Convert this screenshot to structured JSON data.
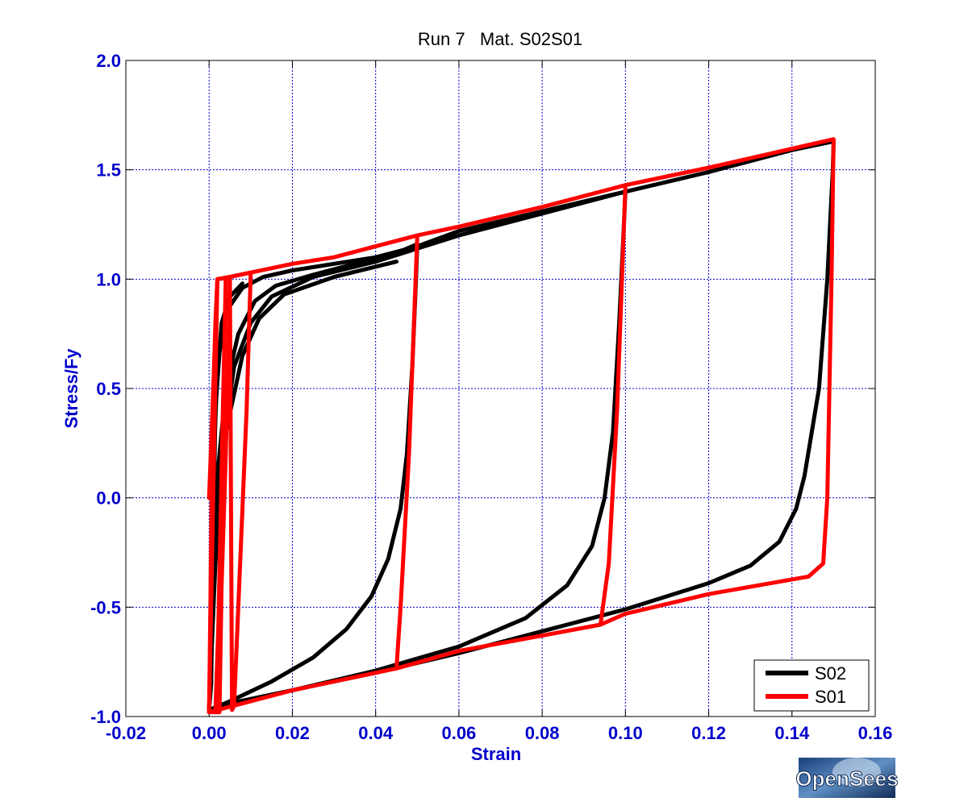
{
  "logo": {
    "text": "OpenSees"
  },
  "chart_data": {
    "type": "line",
    "title": "Run 7   Mat. S02S01",
    "xlabel": "Strain",
    "ylabel": "Stress/Fy",
    "xlim": [
      -0.02,
      0.16
    ],
    "ylim": [
      -1.0,
      2.0
    ],
    "xticks": [
      -0.02,
      0.0,
      0.02,
      0.04,
      0.06,
      0.08,
      0.1,
      0.12,
      0.14,
      0.16
    ],
    "xtick_labels": [
      "-0.02",
      "0.00",
      "0.02",
      "0.04",
      "0.06",
      "0.08",
      "0.10",
      "0.12",
      "0.14",
      "0.16"
    ],
    "yticks": [
      -1.0,
      -0.5,
      0.0,
      0.5,
      1.0,
      1.5,
      2.0
    ],
    "ytick_labels": [
      "-1.0",
      "-0.5",
      "0.0",
      "0.5",
      "1.0",
      "1.5",
      "2.0"
    ],
    "grid": true,
    "legend_position": "bottom-right",
    "series": [
      {
        "name": "S02",
        "color": "#000000",
        "segments": [
          [
            [
              0.0,
              -0.97
            ],
            [
              0.0005,
              -0.6
            ],
            [
              0.001,
              0.1
            ],
            [
              0.002,
              0.6
            ],
            [
              0.004,
              0.85
            ],
            [
              0.008,
              0.96
            ],
            [
              0.013,
              1.01
            ],
            [
              0.02,
              1.04
            ],
            [
              0.03,
              1.07
            ],
            [
              0.04,
              1.1
            ],
            [
              0.05,
              1.15
            ],
            [
              0.06,
              1.22
            ],
            [
              0.08,
              1.31
            ],
            [
              0.1,
              1.4
            ],
            [
              0.12,
              1.49
            ],
            [
              0.14,
              1.59
            ],
            [
              0.15,
              1.63
            ],
            [
              0.1498,
              1.5
            ],
            [
              0.1485,
              1.0
            ],
            [
              0.1465,
              0.5
            ],
            [
              0.143,
              0.1
            ],
            [
              0.141,
              -0.05
            ],
            [
              0.137,
              -0.2
            ],
            [
              0.13,
              -0.31
            ],
            [
              0.12,
              -0.39
            ],
            [
              0.1,
              -0.51
            ],
            [
              0.08,
              -0.61
            ],
            [
              0.06,
              -0.71
            ],
            [
              0.04,
              -0.8
            ],
            [
              0.02,
              -0.88
            ],
            [
              0.005,
              -0.94
            ],
            [
              0.0,
              -0.97
            ]
          ],
          [
            [
              0.0,
              -0.97
            ],
            [
              0.0008,
              -0.5
            ],
            [
              0.002,
              0.1
            ],
            [
              0.004,
              0.5
            ],
            [
              0.007,
              0.75
            ],
            [
              0.011,
              0.9
            ],
            [
              0.016,
              0.97
            ],
            [
              0.025,
              1.02
            ],
            [
              0.035,
              1.07
            ],
            [
              0.045,
              1.12
            ],
            [
              0.05,
              1.16
            ],
            [
              0.0497,
              1.0
            ],
            [
              0.0488,
              0.6
            ],
            [
              0.0475,
              0.2
            ],
            [
              0.046,
              -0.05
            ],
            [
              0.043,
              -0.28
            ],
            [
              0.039,
              -0.45
            ],
            [
              0.033,
              -0.6
            ],
            [
              0.025,
              -0.73
            ],
            [
              0.015,
              -0.84
            ],
            [
              0.005,
              -0.93
            ],
            [
              0.0,
              -0.97
            ]
          ],
          [
            [
              0.0,
              -0.97
            ],
            [
              0.001,
              -0.4
            ],
            [
              0.003,
              0.2
            ],
            [
              0.006,
              0.6
            ],
            [
              0.01,
              0.8
            ],
            [
              0.015,
              0.92
            ],
            [
              0.025,
              1.01
            ],
            [
              0.04,
              1.08
            ],
            [
              0.06,
              1.2
            ],
            [
              0.08,
              1.3
            ],
            [
              0.1,
              1.4
            ],
            [
              0.0995,
              1.2
            ],
            [
              0.0985,
              0.8
            ],
            [
              0.097,
              0.3
            ],
            [
              0.095,
              0.0
            ],
            [
              0.092,
              -0.22
            ],
            [
              0.086,
              -0.4
            ],
            [
              0.076,
              -0.55
            ],
            [
              0.06,
              -0.68
            ],
            [
              0.04,
              -0.79
            ],
            [
              0.02,
              -0.88
            ],
            [
              0.005,
              -0.94
            ],
            [
              0.0,
              -0.97
            ]
          ],
          [
            [
              0.0,
              -0.97
            ],
            [
              0.0015,
              -0.3
            ],
            [
              0.004,
              0.3
            ],
            [
              0.008,
              0.65
            ],
            [
              0.012,
              0.82
            ],
            [
              0.018,
              0.93
            ],
            [
              0.03,
              1.01
            ],
            [
              0.045,
              1.08
            ]
          ],
          [
            [
              0.0,
              -0.97
            ],
            [
              0.0005,
              -0.85
            ],
            [
              0.001,
              -0.2
            ],
            [
              0.0015,
              0.4
            ],
            [
              0.003,
              0.8
            ],
            [
              0.005,
              0.92
            ],
            [
              0.008,
              0.98
            ]
          ]
        ]
      },
      {
        "name": "S01",
        "color": "#ff0000",
        "segments": [
          [
            [
              0.0,
              0.0
            ],
            [
              0.002,
              1.0
            ],
            [
              0.005,
              1.01
            ],
            [
              0.01,
              1.03
            ],
            [
              0.02,
              1.07
            ],
            [
              0.03,
              1.1
            ],
            [
              0.04,
              1.15
            ],
            [
              0.05,
              1.2
            ],
            [
              0.06,
              1.24
            ],
            [
              0.08,
              1.33
            ],
            [
              0.1,
              1.43
            ],
            [
              0.12,
              1.51
            ],
            [
              0.15,
              1.64
            ],
            [
              0.1495,
              1.0
            ],
            [
              0.1485,
              0.0
            ],
            [
              0.1475,
              -0.3
            ],
            [
              0.144,
              -0.36
            ],
            [
              0.12,
              -0.44
            ],
            [
              0.1,
              -0.53
            ],
            [
              0.094,
              -0.58
            ],
            [
              0.08,
              -0.63
            ],
            [
              0.06,
              -0.7
            ],
            [
              0.045,
              -0.78
            ],
            [
              0.04,
              -0.8
            ],
            [
              0.02,
              -0.88
            ],
            [
              0.006,
              -0.95
            ],
            [
              0.0,
              -0.98
            ]
          ],
          [
            [
              0.0,
              -0.98
            ],
            [
              0.0003,
              -0.5
            ],
            [
              0.0007,
              0.2
            ],
            [
              0.0012,
              0.6
            ],
            [
              0.0015,
              0.8
            ],
            [
              0.002,
              1.0
            ],
            [
              0.005,
              1.01
            ],
            [
              0.0045,
              0.6
            ],
            [
              0.004,
              0.2
            ],
            [
              0.003,
              -0.4
            ],
            [
              0.0025,
              -0.98
            ],
            [
              0.0,
              -0.98
            ]
          ],
          [
            [
              0.0,
              -0.98
            ],
            [
              0.002,
              1.0
            ],
            [
              0.004,
              1.005
            ],
            [
              0.0032,
              0.3
            ],
            [
              0.0022,
              -0.6
            ],
            [
              0.0015,
              -0.98
            ]
          ],
          [
            [
              0.005,
              1.01
            ],
            [
              0.01,
              1.03
            ],
            [
              0.009,
              0.4
            ],
            [
              0.007,
              -0.5
            ],
            [
              0.006,
              -0.95
            ],
            [
              0.0055,
              -0.97
            ],
            [
              0.005,
              1.01
            ]
          ],
          [
            [
              0.05,
              1.2
            ],
            [
              0.048,
              0.2
            ],
            [
              0.046,
              -0.5
            ],
            [
              0.045,
              -0.78
            ]
          ],
          [
            [
              0.1,
              1.43
            ],
            [
              0.098,
              0.4
            ],
            [
              0.096,
              -0.3
            ],
            [
              0.094,
              -0.58
            ]
          ]
        ]
      }
    ]
  }
}
